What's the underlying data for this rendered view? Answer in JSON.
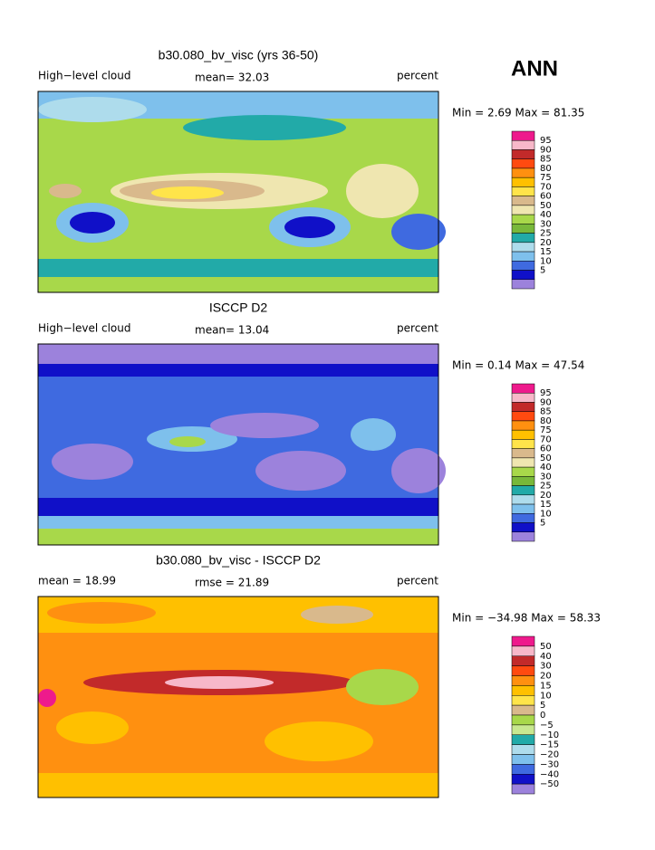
{
  "label": "ANN",
  "panels": [
    {
      "title": "b30.080_bv_visc (yrs 36-50)",
      "left_label": "High−level cloud",
      "center_label": "mean=  32.03",
      "right_label": "percent",
      "stats": "Min =   2.69 Max =  81.35",
      "colorbar": {
        "labels": [
          "95",
          "90",
          "85",
          "80",
          "75",
          "70",
          "60",
          "50",
          "40",
          "30",
          "25",
          "20",
          "15",
          "10",
          "5"
        ],
        "colors": [
          "#ee1a8c",
          "#f7b8c9",
          "#c22a2a",
          "#ff4a10",
          "#ff9010",
          "#ffc000",
          "#ffe44a",
          "#d9b98c",
          "#efe6b0",
          "#a8d84a",
          "#78b83a",
          "#22aaa8",
          "#aedcec",
          "#7ec0ec",
          "#3f6ae0",
          "#1010c8",
          "#9c82dc"
        ]
      }
    },
    {
      "title": "ISCCP D2",
      "left_label": "High−level cloud",
      "center_label": "mean=  13.04",
      "right_label": "percent",
      "stats": "Min =   0.14 Max =  47.54",
      "colorbar": {
        "labels": [
          "95",
          "90",
          "85",
          "80",
          "75",
          "70",
          "60",
          "50",
          "40",
          "30",
          "25",
          "20",
          "15",
          "10",
          "5"
        ],
        "colors": [
          "#ee1a8c",
          "#f7b8c9",
          "#c22a2a",
          "#ff4a10",
          "#ff9010",
          "#ffc000",
          "#ffe44a",
          "#d9b98c",
          "#efe6b0",
          "#a8d84a",
          "#78b83a",
          "#22aaa8",
          "#aedcec",
          "#7ec0ec",
          "#3f6ae0",
          "#1010c8",
          "#9c82dc"
        ]
      }
    },
    {
      "title": "b30.080_bv_visc - ISCCP D2",
      "left_label": "mean =  18.99",
      "center_label": "rmse =  21.89",
      "right_label": "percent",
      "stats": "Min = −34.98 Max =  58.33",
      "colorbar": {
        "labels": [
          "50",
          "40",
          "30",
          "20",
          "15",
          "10",
          "5",
          "0",
          "−5",
          "−10",
          "−15",
          "−20",
          "−30",
          "−40",
          "−50"
        ],
        "colors": [
          "#ee1a8c",
          "#f7b8c9",
          "#c22a2a",
          "#ff4a10",
          "#ff9010",
          "#ffc000",
          "#ffe44a",
          "#d9b98c",
          "#a8d84a",
          "#c8e890",
          "#22aaa8",
          "#aedcec",
          "#7ec0ec",
          "#3f6ae0",
          "#1010c8",
          "#9c82dc"
        ]
      }
    }
  ]
}
